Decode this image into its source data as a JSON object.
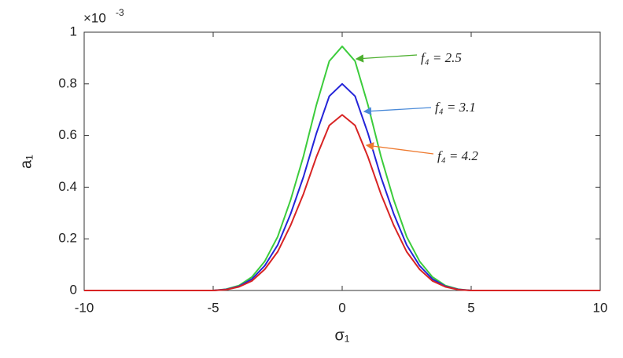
{
  "chart_data": {
    "type": "line",
    "x_label": "σ₁",
    "y_label": "a₁",
    "y_multiplier": "×10",
    "y_multiplier_exponent": "-3",
    "x": [
      -10,
      -5,
      -4.5,
      -4,
      -3.5,
      -3,
      -2.5,
      -2,
      -1.5,
      -1,
      -0.5,
      0,
      0.5,
      1,
      1.5,
      2,
      2.5,
      3,
      3.5,
      4,
      4.5,
      5,
      10
    ],
    "series": [
      {
        "name": "f₄ = 2.5",
        "color": "#3ccc3c",
        "values": [
          0,
          0,
          0.005,
          0.019,
          0.052,
          0.113,
          0.208,
          0.35,
          0.52,
          0.718,
          0.888,
          0.945,
          0.888,
          0.718,
          0.52,
          0.35,
          0.208,
          0.113,
          0.052,
          0.019,
          0.005,
          0,
          0
        ]
      },
      {
        "name": "f₄ = 3.1",
        "color": "#2424d8",
        "values": [
          0,
          0,
          0.004,
          0.016,
          0.044,
          0.096,
          0.176,
          0.296,
          0.44,
          0.608,
          0.752,
          0.8,
          0.752,
          0.608,
          0.44,
          0.296,
          0.176,
          0.096,
          0.044,
          0.016,
          0.004,
          0,
          0
        ]
      },
      {
        "name": "f₄ = 4.2",
        "color": "#d82424",
        "values": [
          0,
          0,
          0.003,
          0.014,
          0.037,
          0.082,
          0.15,
          0.252,
          0.374,
          0.517,
          0.639,
          0.68,
          0.639,
          0.517,
          0.374,
          0.252,
          0.15,
          0.082,
          0.037,
          0.014,
          0.003,
          0,
          0
        ]
      }
    ],
    "xlim": [
      -10,
      10
    ],
    "ylim": [
      0,
      1
    ],
    "xticks": [
      -10,
      -5,
      0,
      5,
      10
    ],
    "yticks": [
      0,
      0.2,
      0.4,
      0.6,
      0.8,
      1
    ]
  }
}
